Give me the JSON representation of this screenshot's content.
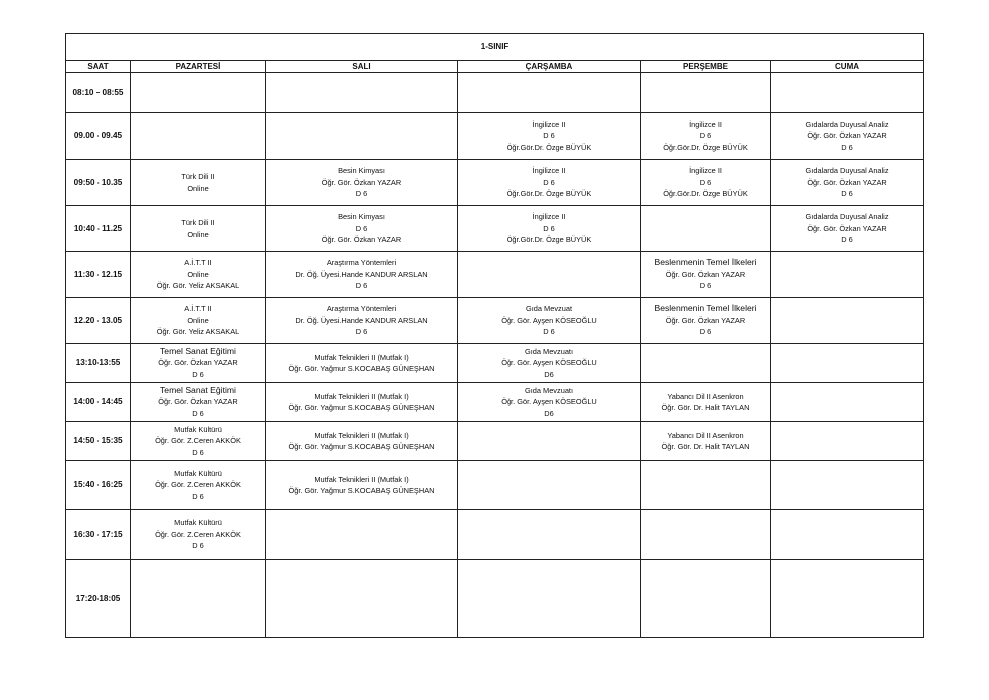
{
  "title": "1-SINIF",
  "headers": [
    "SAAT",
    "PAZARTESİ",
    "SALI",
    "ÇARŞAMBA",
    "PERŞEMBE",
    "CUMA"
  ],
  "rows": [
    {
      "time": "08:10 – 08:55",
      "cells": [
        [],
        [],
        [],
        [],
        []
      ]
    },
    {
      "time": "09.00 - 09.45",
      "cells": [
        [],
        [],
        [
          "İngilizce II",
          "D 6",
          "Öğr.Gör.Dr. Özge BÜYÜK"
        ],
        [
          "İngilizce II",
          "D 6",
          "Öğr.Gör.Dr. Özge BÜYÜK"
        ],
        [
          "Gıdalarda Duyusal Analiz",
          "Öğr. Gör. Özkan YAZAR",
          "D 6"
        ]
      ]
    },
    {
      "time": "09:50 - 10.35",
      "cells": [
        [
          "Türk Dili II",
          "Online"
        ],
        [
          "Besin Kimyası",
          "Öğr. Gör. Özkan YAZAR",
          "D 6"
        ],
        [
          "İngilizce II",
          "D 6",
          "Öğr.Gör.Dr. Özge BÜYÜK"
        ],
        [
          "İngilizce II",
          "D 6",
          "Öğr.Gör.Dr. Özge BÜYÜK"
        ],
        [
          "Gıdalarda Duyusal Analiz",
          "Öğr. Gör. Özkan YAZAR",
          "D 6"
        ]
      ]
    },
    {
      "time": "10:40 - 11.25",
      "cells": [
        [
          "Türk Dili II",
          "Online"
        ],
        [
          "Besin Kimyası",
          "D 6",
          "Öğr. Gör. Özkan YAZAR"
        ],
        [
          "İngilizce II",
          "D 6",
          "Öğr.Gör.Dr. Özge BÜYÜK"
        ],
        [],
        [
          "Gıdalarda Duyusal Analiz",
          "Öğr. Gör. Özkan YAZAR",
          "D 6"
        ]
      ]
    },
    {
      "time": "11:30 - 12.15",
      "cells": [
        [
          "A.İ.T.T II",
          "Online",
          "Öğr. Gör. Yeliz AKSAKAL"
        ],
        [
          "Araştırma Yöntemleri",
          "Dr. Öğ. Üyesi.Hande KANDUR ARSLAN",
          "D 6"
        ],
        [],
        [
          "Beslenmenin Temel İlkeleri",
          "Öğr. Gör. Özkan YAZAR",
          "D 6"
        ],
        []
      ]
    },
    {
      "time": "12.20 - 13.05",
      "cells": [
        [
          "A.İ.T.T II",
          "Online",
          "Öğr. Gör. Yeliz AKSAKAL"
        ],
        [
          "Araştırma Yöntemleri",
          "Dr. Öğ. Üyesi.Hande KANDUR ARSLAN",
          "D 6"
        ],
        [
          "Gıda Mevzuat",
          "Öğr. Gör.  Ayşen KÖSEOĞLU",
          "D 6"
        ],
        [
          "Beslenmenin Temel İlkeleri",
          "Öğr. Gör. Özkan YAZAR",
          "D 6"
        ],
        []
      ]
    },
    {
      "time": "13:10-13:55",
      "cells": [
        [
          "Temel Sanat Eğitimi",
          "Öğr. Gör. Özkan YAZAR",
          "D 6"
        ],
        [
          "Mutfak Teknikleri II  (Mutfak I)",
          "Öğr. Gör. Yağmur S.KOCABAŞ GÜNEŞHAN"
        ],
        [
          "Gıda Mevzuatı",
          "Öğr. Gör.  Ayşen KÖSEOĞLU",
          "D6"
        ],
        [],
        []
      ]
    },
    {
      "time": "14:00 - 14:45",
      "cells": [
        [
          "Temel Sanat Eğitimi",
          "Öğr. Gör. Özkan YAZAR",
          "D 6"
        ],
        [
          "Mutfak Teknikleri II  (Mutfak I)",
          "Öğr. Gör. Yağmur S.KOCABAŞ GÜNEŞHAN"
        ],
        [
          "Gıda Mevzuatı",
          "Öğr. Gör.  Ayşen KÖSEOĞLU",
          "D6"
        ],
        [
          "Yabancı Dil II   Asenkron",
          "Öğr. Gör. Dr. Halit TAYLAN"
        ],
        []
      ]
    },
    {
      "time": "14:50 - 15:35",
      "cells": [
        [
          "Mutfak Kültürü",
          "Öğr. Gör. Z.Ceren AKKÖK",
          "D 6"
        ],
        [
          "Mutfak Teknikleri II  (Mutfak I)",
          "Öğr. Gör. Yağmur S.KOCABAŞ GÜNEŞHAN"
        ],
        [],
        [
          "Yabancı Dil II   Asenkron",
          "Öğr. Gör. Dr. Halit TAYLAN"
        ],
        []
      ]
    },
    {
      "time": "15:40 - 16:25",
      "cells": [
        [
          "Mutfak Kültürü",
          "Öğr. Gör. Z.Ceren AKKÖK",
          "D 6"
        ],
        [
          "Mutfak Teknikleri II (Mutfak I)",
          "Öğr. Gör.  Yağmur S.KOCABAŞ GÜNEŞHAN"
        ],
        [],
        [],
        []
      ]
    },
    {
      "time": "16:30 - 17:15",
      "cells": [
        [
          "Mutfak Kültürü",
          "Öğr. Gör. Z.Ceren AKKÖK",
          "D 6"
        ],
        [],
        [],
        [],
        []
      ]
    },
    {
      "time": "17:20-18:05",
      "cells": [
        [],
        [],
        [],
        [],
        []
      ]
    }
  ]
}
